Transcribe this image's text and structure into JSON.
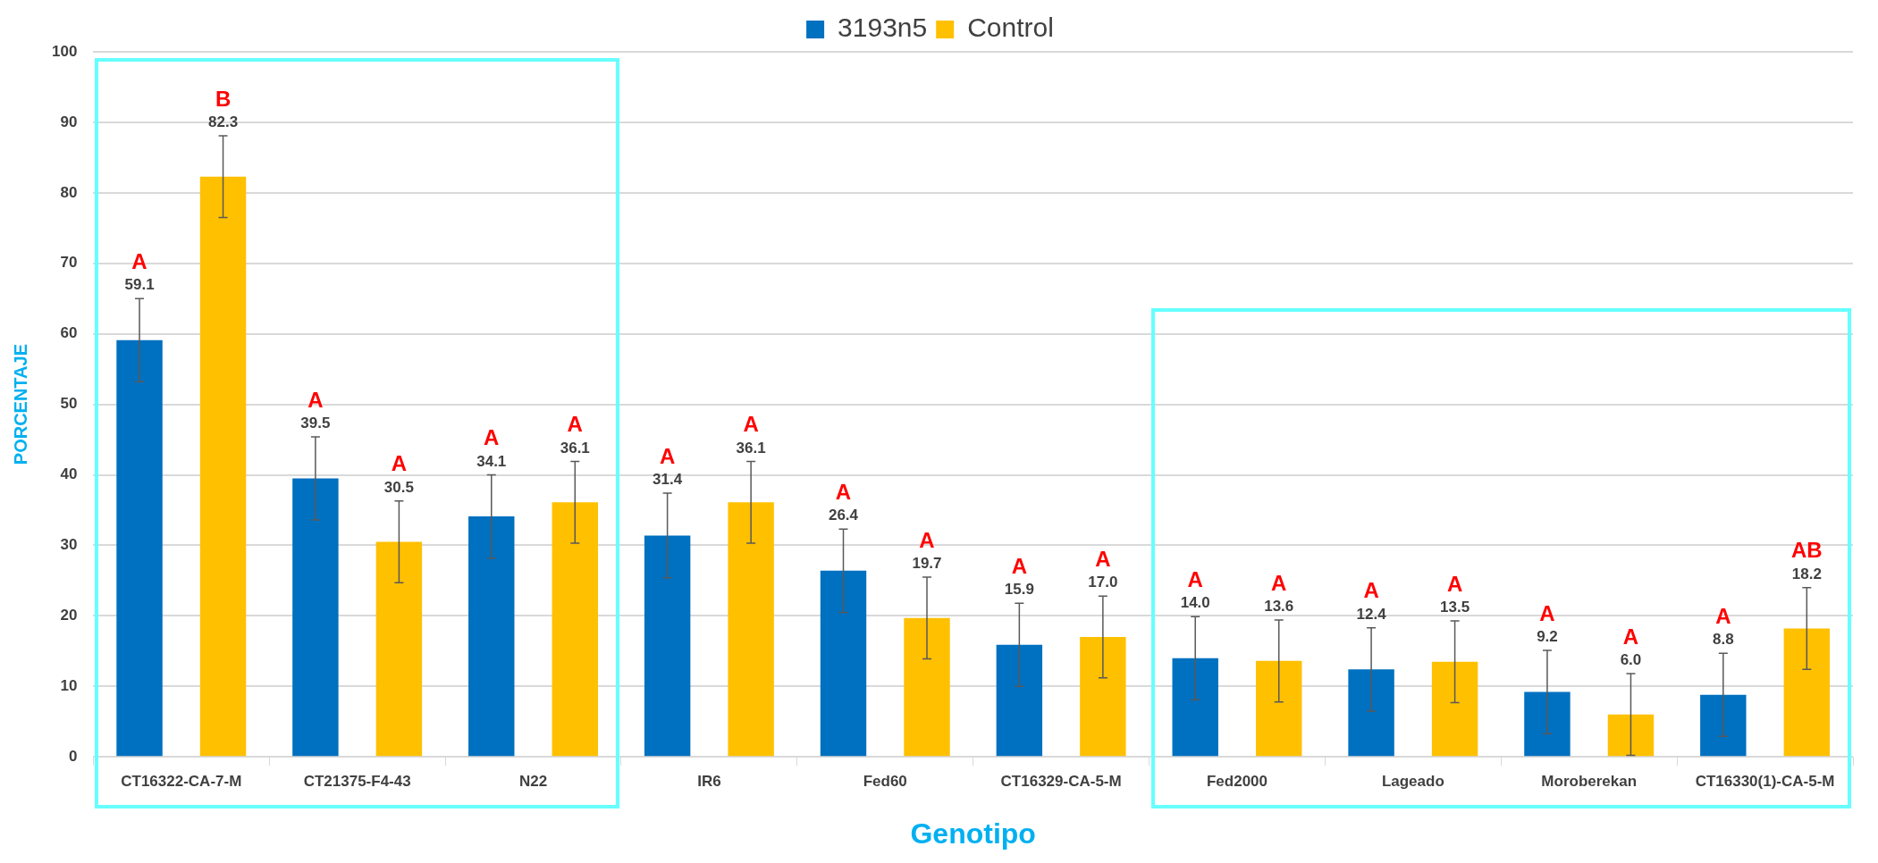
{
  "chart_data": {
    "type": "bar",
    "xlabel": "Genotipo",
    "ylabel": "PORCENTAJE",
    "categories": [
      "CT16322-CA-7-M",
      "CT21375-F4-43",
      "N22",
      "IR6",
      "Fed60",
      "CT16329-CA-5-M",
      "Fed2000",
      "Lageado",
      "Moroberekan",
      "CT16330(1)-CA-5-M"
    ],
    "series": [
      {
        "name": "3193n5",
        "color": "#0070c0",
        "values": [
          59.1,
          39.5,
          34.1,
          31.4,
          26.4,
          15.9,
          14.0,
          12.4,
          9.2,
          8.8
        ],
        "value_labels": [
          "59.1",
          "39.5",
          "34.1",
          "31.4",
          "26.4",
          "15.9",
          "14.0",
          "12.4",
          "9.2",
          "8.8"
        ],
        "errors": [
          5.9,
          5.9,
          5.9,
          6.0,
          5.9,
          5.9,
          5.9,
          5.9,
          5.9,
          5.9
        ]
      },
      {
        "name": "Control",
        "color": "#ffc000",
        "values": [
          82.3,
          30.5,
          36.1,
          36.1,
          19.7,
          17.0,
          13.6,
          13.5,
          6.0,
          18.2
        ],
        "value_labels": [
          "82.3",
          "30.5",
          "36.1",
          "36.1",
          "19.7",
          "17.0",
          "13.6",
          "13.5",
          "6.0",
          "18.2"
        ],
        "errors": [
          5.8,
          5.8,
          5.8,
          5.8,
          5.8,
          5.8,
          5.8,
          5.8,
          5.8,
          5.8
        ]
      }
    ],
    "ylim": [
      0,
      100
    ],
    "yticks": [
      0,
      10,
      20,
      30,
      40,
      50,
      60,
      70,
      80,
      90,
      100
    ],
    "grid": "y",
    "legend": "top",
    "annotations": [
      "A",
      "B",
      "A",
      "A",
      "A",
      "A",
      "A",
      "A",
      "A",
      "A",
      "A",
      "A",
      "A",
      "A",
      "A",
      "A",
      "A",
      "A",
      "A",
      "AB"
    ]
  }
}
